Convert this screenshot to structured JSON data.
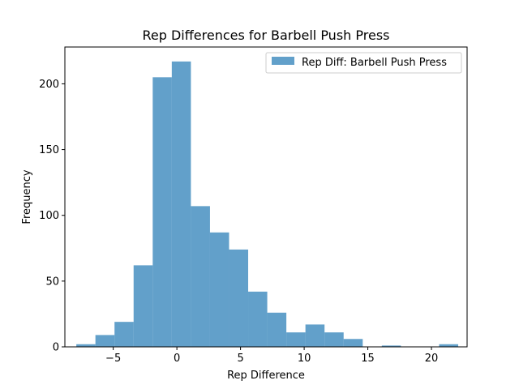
{
  "chart_data": {
    "type": "bar",
    "title": "Rep Differences for Barbell Push Press",
    "xlabel": "Rep Difference",
    "ylabel": "Frequency",
    "xlim": [
      -8.8,
      22.8
    ],
    "ylim": [
      0,
      228
    ],
    "xticks": [
      -5,
      0,
      5,
      10,
      15,
      20
    ],
    "yticks": [
      0,
      50,
      100,
      150,
      200
    ],
    "grid": false,
    "legend_position": "upper-right",
    "series": [
      {
        "name": "Rep Diff: Barbell Push Press",
        "color": "#1f77b4",
        "opacity": 0.7,
        "bins": [
          {
            "x0": -7.9,
            "x1": -6.4,
            "value": 2
          },
          {
            "x0": -6.4,
            "x1": -4.9,
            "value": 9
          },
          {
            "x0": -4.9,
            "x1": -3.4,
            "value": 19
          },
          {
            "x0": -3.4,
            "x1": -1.9,
            "value": 62
          },
          {
            "x0": -1.9,
            "x1": -0.4,
            "value": 205
          },
          {
            "x0": -0.4,
            "x1": 1.1,
            "value": 217
          },
          {
            "x0": 1.1,
            "x1": 2.6,
            "value": 107
          },
          {
            "x0": 2.6,
            "x1": 4.1,
            "value": 87
          },
          {
            "x0": 4.1,
            "x1": 5.6,
            "value": 74
          },
          {
            "x0": 5.6,
            "x1": 7.1,
            "value": 42
          },
          {
            "x0": 7.1,
            "x1": 8.6,
            "value": 26
          },
          {
            "x0": 8.6,
            "x1": 10.1,
            "value": 11
          },
          {
            "x0": 10.1,
            "x1": 11.6,
            "value": 17
          },
          {
            "x0": 11.6,
            "x1": 13.1,
            "value": 11
          },
          {
            "x0": 13.1,
            "x1": 14.6,
            "value": 6
          },
          {
            "x0": 14.6,
            "x1": 16.1,
            "value": 0
          },
          {
            "x0": 16.1,
            "x1": 17.6,
            "value": 1
          },
          {
            "x0": 17.6,
            "x1": 19.1,
            "value": 0
          },
          {
            "x0": 19.1,
            "x1": 20.6,
            "value": 0
          },
          {
            "x0": 20.6,
            "x1": 22.1,
            "value": 2
          }
        ]
      }
    ]
  }
}
